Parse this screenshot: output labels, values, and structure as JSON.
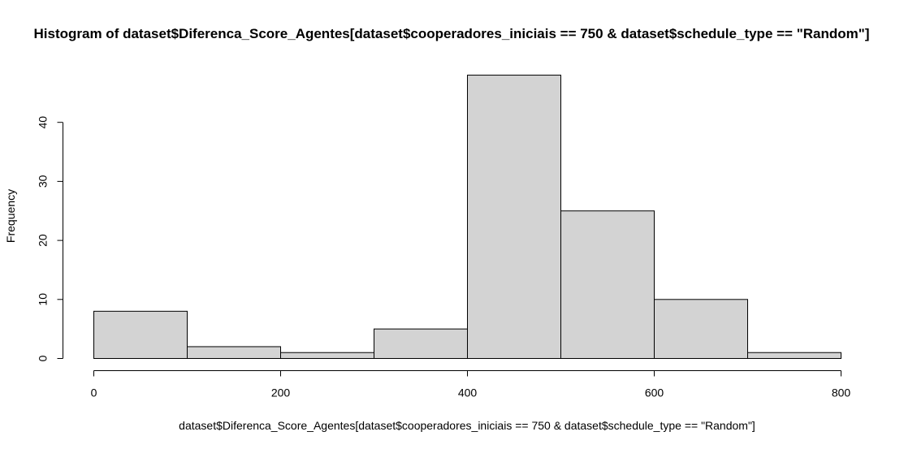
{
  "chart_data": {
    "type": "bar",
    "title": "Histogram of dataset$Diferenca_Score_Agentes[dataset$cooperadores_iniciais == 750 & dataset$schedule_type == \"Random\"]",
    "xlabel": "dataset$Diferenca_Score_Agentes[dataset$cooperadores_iniciais == 750 & dataset$schedule_type == \"Random\"]",
    "ylabel": "Frequency",
    "bins": [
      {
        "from": 0,
        "to": 100,
        "count": 8
      },
      {
        "from": 100,
        "to": 200,
        "count": 2
      },
      {
        "from": 200,
        "to": 300,
        "count": 1
      },
      {
        "from": 300,
        "to": 400,
        "count": 5
      },
      {
        "from": 400,
        "to": 500,
        "count": 48
      },
      {
        "from": 500,
        "to": 600,
        "count": 25
      },
      {
        "from": 600,
        "to": 700,
        "count": 10
      },
      {
        "from": 700,
        "to": 800,
        "count": 1
      }
    ],
    "xlim": [
      0,
      800
    ],
    "ylim": [
      0,
      48
    ],
    "xticks": [
      0,
      200,
      400,
      600,
      800
    ],
    "yticks": [
      0,
      10,
      20,
      30,
      40
    ],
    "bar_color": "#d3d3d3",
    "grid": false
  }
}
